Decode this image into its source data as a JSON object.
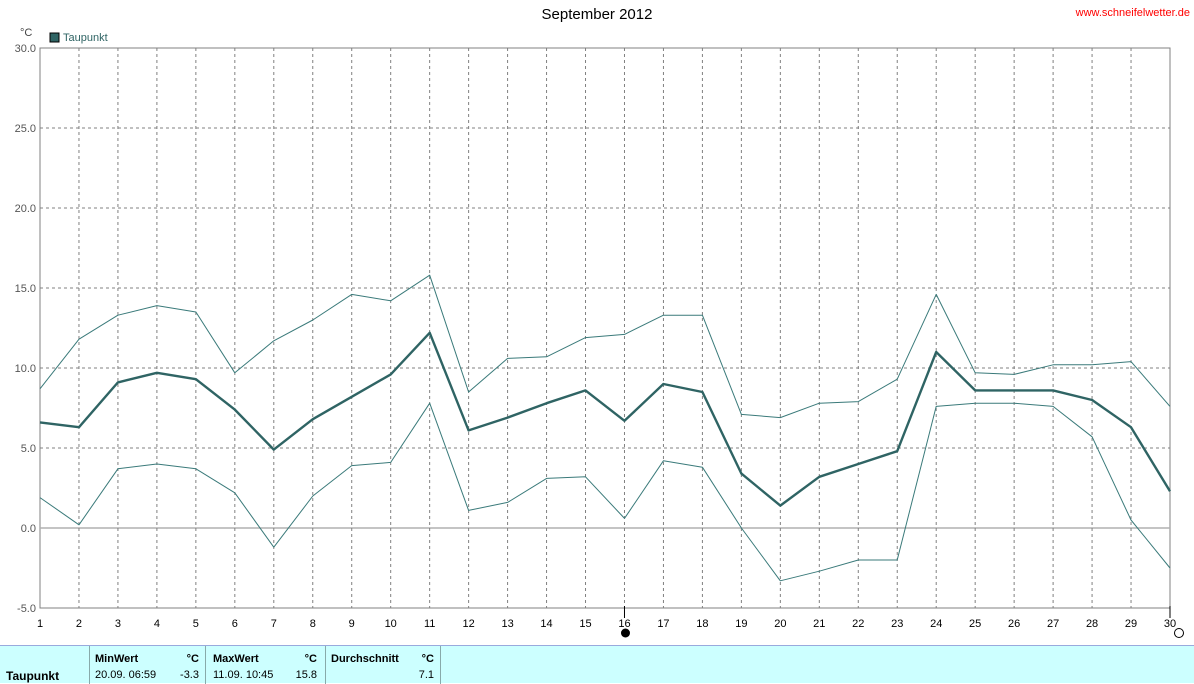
{
  "header": {
    "title": "September 2012",
    "site": "www.schneifelwetter.de"
  },
  "chart_data": {
    "type": "line",
    "title": "September 2012",
    "ylabel": "°C",
    "ylim": [
      -5,
      30
    ],
    "yticks": [
      "30.0",
      "25.0",
      "20.0",
      "15.0",
      "10.0",
      "5.0",
      "0.0",
      "-5.0"
    ],
    "x": [
      1,
      2,
      3,
      4,
      5,
      6,
      7,
      8,
      9,
      10,
      11,
      12,
      13,
      14,
      15,
      16,
      17,
      18,
      19,
      20,
      21,
      22,
      23,
      24,
      25,
      26,
      27,
      28,
      29,
      30
    ],
    "xticks": [
      "1",
      "2",
      "3",
      "4",
      "5",
      "6",
      "7",
      "8",
      "9",
      "10",
      "11",
      "12",
      "13",
      "14",
      "15",
      "16",
      "17",
      "18",
      "19",
      "20",
      "21",
      "22",
      "23",
      "24",
      "25",
      "26",
      "27",
      "28",
      "29",
      "30"
    ],
    "legend": [
      "Taupunkt"
    ],
    "grid": true,
    "colors": {
      "series": "#3a7a7a",
      "bold": "#2f6464",
      "grid": "#808080",
      "zero": "#b0b0b0"
    },
    "series": [
      {
        "name": "Taupunkt",
        "role": "avg",
        "values": [
          6.6,
          6.3,
          9.1,
          9.7,
          9.3,
          7.4,
          4.9,
          6.8,
          8.2,
          9.6,
          12.2,
          6.1,
          6.9,
          7.8,
          8.6,
          6.7,
          9.0,
          8.5,
          3.4,
          1.4,
          3.2,
          4.0,
          4.8,
          11.0,
          8.6,
          8.6,
          8.6,
          8.0,
          6.3,
          2.3
        ]
      },
      {
        "name": "",
        "role": "max",
        "values": [
          8.7,
          11.8,
          13.3,
          13.9,
          13.5,
          9.7,
          11.7,
          13.0,
          14.6,
          14.2,
          15.8,
          8.5,
          10.6,
          10.7,
          11.9,
          12.1,
          13.3,
          13.3,
          7.1,
          6.9,
          7.8,
          7.9,
          9.3,
          14.6,
          9.7,
          9.6,
          10.2,
          10.2,
          10.4,
          7.6
        ]
      },
      {
        "name": "",
        "role": "min",
        "values": [
          1.9,
          0.2,
          3.7,
          4.0,
          3.7,
          2.2,
          -1.2,
          2.0,
          3.9,
          4.1,
          7.8,
          1.1,
          1.6,
          3.1,
          3.2,
          0.6,
          4.2,
          3.8,
          0.0,
          -3.3,
          -2.7,
          -2.0,
          -2.0,
          7.6,
          7.8,
          7.8,
          7.6,
          5.7,
          0.5,
          -2.5
        ]
      }
    ],
    "markers": [
      {
        "day": 16,
        "symbol": "full-moon-dot"
      },
      {
        "day": 30,
        "symbol": "empty-circle"
      }
    ]
  },
  "footer": {
    "row_label": "Taupunkt",
    "min": {
      "header": "MinWert",
      "unit": "°C",
      "time": "20.09.  06:59",
      "value": "-3.3"
    },
    "max": {
      "header": "MaxWert",
      "unit": "°C",
      "time": "11.09.  10:45",
      "value": "15.8"
    },
    "avg": {
      "header": "Durchschnitt",
      "unit": "°C",
      "value": "7.1"
    }
  }
}
